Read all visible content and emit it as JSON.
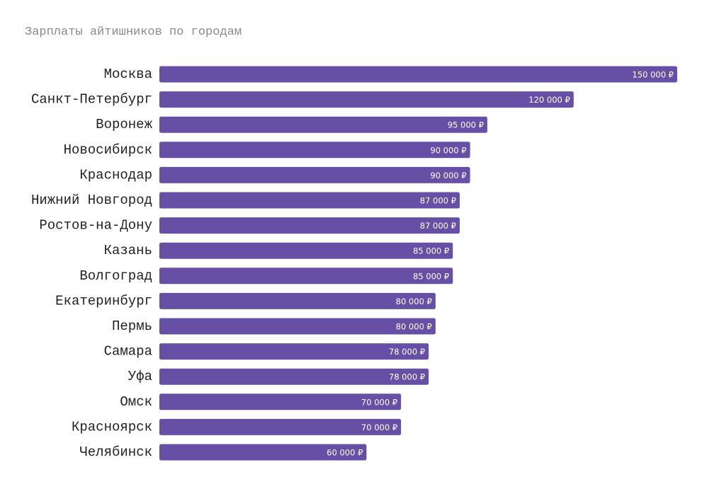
{
  "chart_data": {
    "type": "bar",
    "orientation": "horizontal",
    "title": "Зарплаты айтишников по городам",
    "xlabel": "",
    "ylabel": "",
    "grid": false,
    "legend": "none",
    "categories": [
      "Москва",
      "Санкт-Петербург",
      "Воронеж",
      "Новосибирск",
      "Краснодар",
      "Нижний Новгород",
      "Ростов-на-Дону",
      "Казань",
      "Волгоград",
      "Екатеринбург",
      "Пермь",
      "Самара",
      "Уфа",
      "Омск",
      "Красноярск",
      "Челябинск"
    ],
    "values": [
      150000,
      120000,
      95000,
      90000,
      90000,
      87000,
      87000,
      85000,
      85000,
      80000,
      80000,
      78000,
      78000,
      70000,
      70000,
      60000
    ],
    "value_labels": [
      "150 000 ₽",
      "120 000 ₽",
      "95 000 ₽",
      "90 000 ₽",
      "90 000 ₽",
      "87 000 ₽",
      "87 000 ₽",
      "85 000 ₽",
      "85 000 ₽",
      "80 000 ₽",
      "80 000 ₽",
      "78 000 ₽",
      "78 000 ₽",
      "70 000 ₽",
      "70 000 ₽",
      "60 000 ₽"
    ],
    "xlim": [
      0,
      150000
    ],
    "bar_color": "#6650a6"
  }
}
